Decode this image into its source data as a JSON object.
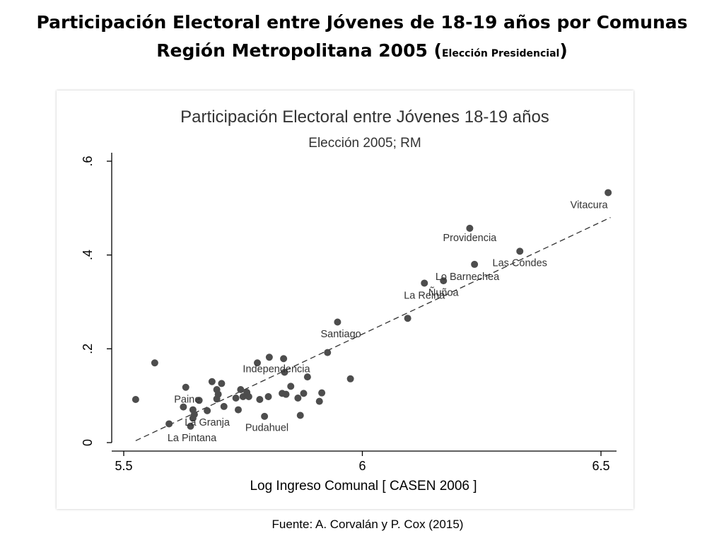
{
  "slide": {
    "title_line1": "Participación Electoral entre Jóvenes de 18-19 años por Comunas",
    "title_line2_main": "Región Metropolitana 2005 (",
    "title_line2_small": "Elección Presidencial",
    "title_line2_end": ")",
    "source": "Fuente:  A. Corvalán y P. Cox (2015)"
  },
  "chart_data": {
    "type": "scatter",
    "title": "Participación Electoral entre Jóvenes 18-19 años",
    "subtitle": "Elección 2005; RM",
    "xlabel": "Log Ingreso Comunal [ CASEN 2006 ]",
    "ylabel": "",
    "xlim": [
      5.48,
      6.53
    ],
    "ylim": [
      0,
      0.6
    ],
    "xticks": [
      5.5,
      6,
      6.5
    ],
    "xtick_labels": [
      "5.5",
      "6",
      "6.5"
    ],
    "yticks": [
      0,
      0.2,
      0.4,
      0.6
    ],
    "ytick_labels": [
      "0",
      ".2",
      ".4",
      ".6"
    ],
    "grid": false,
    "fit_line": {
      "style": "dashed",
      "x": [
        5.525,
        6.52
      ],
      "y": [
        0.004,
        0.48
      ]
    },
    "points": [
      {
        "x": 5.525,
        "y": 0.092
      },
      {
        "x": 5.565,
        "y": 0.17
      },
      {
        "x": 5.595,
        "y": 0.04,
        "label": "La Pintana"
      },
      {
        "x": 5.625,
        "y": 0.076
      },
      {
        "x": 5.63,
        "y": 0.118
      },
      {
        "x": 5.64,
        "y": 0.035
      },
      {
        "x": 5.645,
        "y": 0.052,
        "label": "La Granja"
      },
      {
        "x": 5.645,
        "y": 0.07
      },
      {
        "x": 5.648,
        "y": 0.06
      },
      {
        "x": 5.658,
        "y": 0.09,
        "label": "Paine"
      },
      {
        "x": 5.675,
        "y": 0.068
      },
      {
        "x": 5.685,
        "y": 0.13
      },
      {
        "x": 5.695,
        "y": 0.093
      },
      {
        "x": 5.695,
        "y": 0.113
      },
      {
        "x": 5.698,
        "y": 0.103
      },
      {
        "x": 5.705,
        "y": 0.126
      },
      {
        "x": 5.71,
        "y": 0.077
      },
      {
        "x": 5.735,
        "y": 0.095
      },
      {
        "x": 5.74,
        "y": 0.07
      },
      {
        "x": 5.745,
        "y": 0.113
      },
      {
        "x": 5.75,
        "y": 0.098
      },
      {
        "x": 5.758,
        "y": 0.107
      },
      {
        "x": 5.762,
        "y": 0.098
      },
      {
        "x": 5.78,
        "y": 0.17,
        "label": "Independencia"
      },
      {
        "x": 5.785,
        "y": 0.092
      },
      {
        "x": 5.795,
        "y": 0.056,
        "label": "Pudahuel"
      },
      {
        "x": 5.803,
        "y": 0.098
      },
      {
        "x": 5.805,
        "y": 0.182
      },
      {
        "x": 5.832,
        "y": 0.105
      },
      {
        "x": 5.835,
        "y": 0.179
      },
      {
        "x": 5.837,
        "y": 0.15
      },
      {
        "x": 5.84,
        "y": 0.103
      },
      {
        "x": 5.85,
        "y": 0.12
      },
      {
        "x": 5.865,
        "y": 0.095
      },
      {
        "x": 5.87,
        "y": 0.058
      },
      {
        "x": 5.877,
        "y": 0.105
      },
      {
        "x": 5.885,
        "y": 0.14
      },
      {
        "x": 5.91,
        "y": 0.088
      },
      {
        "x": 5.915,
        "y": 0.106
      },
      {
        "x": 5.927,
        "y": 0.192
      },
      {
        "x": 5.948,
        "y": 0.257,
        "label": "Santiago"
      },
      {
        "x": 5.975,
        "y": 0.136
      },
      {
        "x": 6.095,
        "y": 0.265
      },
      {
        "x": 6.13,
        "y": 0.34,
        "label": "La Reina"
      },
      {
        "x": 6.17,
        "y": 0.345,
        "label": "Ñuñoa"
      },
      {
        "x": 6.235,
        "y": 0.38,
        "label": "Lo Barnechea"
      },
      {
        "x": 6.225,
        "y": 0.457,
        "label": "Providencia"
      },
      {
        "x": 6.33,
        "y": 0.408,
        "label": "Las Condes"
      },
      {
        "x": 6.515,
        "y": 0.533,
        "label": "Vitacura"
      }
    ],
    "point_labels": [
      {
        "text": "Vitacura",
        "x": 6.475,
        "y": 0.5
      },
      {
        "text": "Providencia",
        "x": 6.225,
        "y": 0.43
      },
      {
        "text": "Las Condes",
        "x": 6.33,
        "y": 0.376
      },
      {
        "text": "Lo Barnechea",
        "x": 6.22,
        "y": 0.347
      },
      {
        "text": "Ñuñoa",
        "x": 6.17,
        "y": 0.313
      },
      {
        "text": "La Reina",
        "x": 6.13,
        "y": 0.307
      },
      {
        "text": "Santiago",
        "x": 5.955,
        "y": 0.225
      },
      {
        "text": "Independencia",
        "x": 5.82,
        "y": 0.15
      },
      {
        "text": "Paine",
        "x": 5.633,
        "y": 0.085
      },
      {
        "text": "La Granja",
        "x": 5.675,
        "y": 0.036
      },
      {
        "text": "Pudahuel",
        "x": 5.8,
        "y": 0.025
      },
      {
        "text": "La Pintana",
        "x": 5.643,
        "y": 0.003
      }
    ],
    "colors": {
      "marker": "#4d4d4d",
      "text": "#333333",
      "axis": "#000000",
      "fit": "#333333"
    }
  }
}
